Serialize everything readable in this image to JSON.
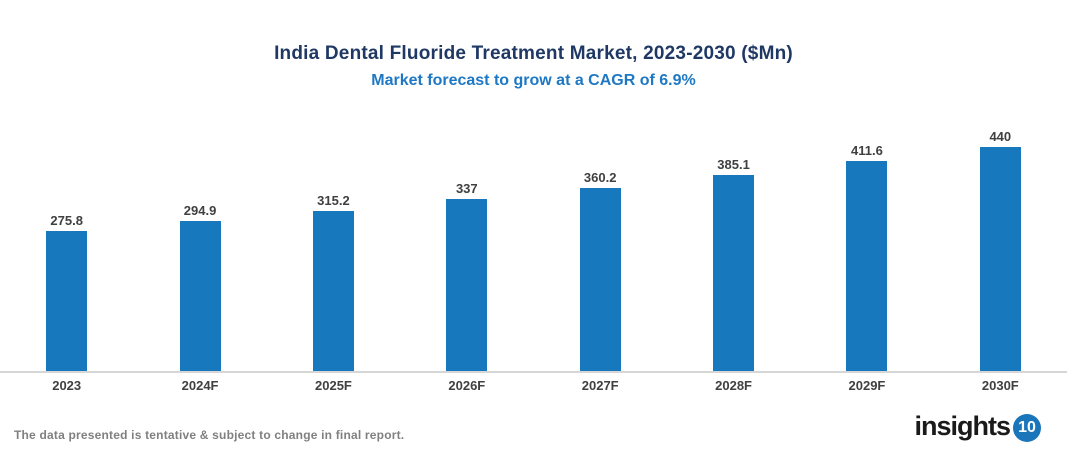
{
  "header": {
    "title": "India Dental Fluoride Treatment Market, 2023-2030 ($Mn)",
    "subtitle": "Market forecast to grow at a CAGR of 6.9%"
  },
  "chart_data": {
    "type": "bar",
    "title": "India Dental Fluoride Treatment Market, 2023-2030 ($Mn)",
    "subtitle": "Market forecast to grow at a CAGR of 6.9%",
    "categories": [
      "2023",
      "2024F",
      "2025F",
      "2026F",
      "2027F",
      "2028F",
      "2029F",
      "2030F"
    ],
    "values": [
      275.8,
      294.9,
      315.2,
      337,
      360.2,
      385.1,
      411.6,
      440
    ],
    "value_labels": [
      "275.8",
      "294.9",
      "315.2",
      "337",
      "360.2",
      "385.1",
      "411.6",
      "440"
    ],
    "xlabel": "",
    "ylabel": "",
    "ylim": [
      0,
      550
    ],
    "grid": false,
    "legend": false,
    "bar_color": "#1878BE"
  },
  "footer": {
    "note": "The data presented is tentative & subject to change in final report.",
    "logo_text": "insights",
    "logo_badge": "10"
  },
  "colors": {
    "bar": "#1878BE",
    "title": "#1F3864",
    "subtitle": "#1E78C4",
    "axis_line": "#D6D6D6",
    "label": "#404040",
    "note": "#808080",
    "logo_text": "#1A1A1A",
    "logo_badge_bg": "#1B75BB"
  }
}
